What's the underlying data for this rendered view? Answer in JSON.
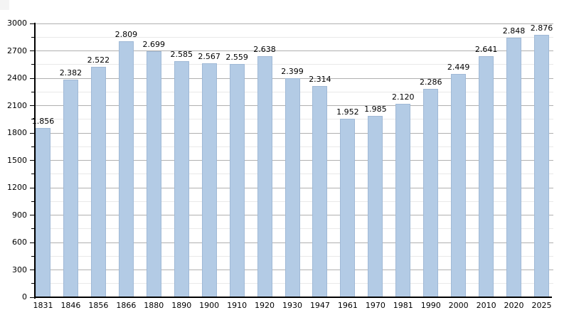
{
  "chart_data": {
    "type": "bar",
    "title": "",
    "xlabel": "",
    "ylabel": "",
    "categories": [
      "1831",
      "1846",
      "1856",
      "1866",
      "1880",
      "1890",
      "1900",
      "1910",
      "1920",
      "1930",
      "1947",
      "1961",
      "1970",
      "1981",
      "1990",
      "2000",
      "2010",
      "2020",
      "2025"
    ],
    "values": [
      1856,
      2382,
      2522,
      2809,
      2699,
      2585,
      2567,
      2559,
      2638,
      2399,
      2314,
      1952,
      1985,
      2120,
      2286,
      2449,
      2641,
      2848,
      2876
    ],
    "value_labels": [
      "1.856",
      "2.382",
      "2.522",
      "2.809",
      "2.699",
      "2.585",
      "2.567",
      "2.559",
      "2.638",
      "2.399",
      "2.314",
      "1.952",
      "1.985",
      "2.120",
      "2.286",
      "2.449",
      "2.641",
      "2.848",
      "2.876"
    ],
    "ylim": [
      0,
      3000
    ],
    "ytick_step": 300,
    "ytick_minor_step": 150,
    "ytick_labels": [
      "0",
      "300",
      "600",
      "900",
      "1200",
      "1500",
      "1800",
      "2100",
      "2400",
      "2700",
      "3000"
    ],
    "grid": true,
    "legend": "none",
    "colors": {
      "bar_fill": "#b3cbe5",
      "bar_border": "#a0b9d6",
      "grid_major": "#b0b0b0",
      "grid_minor": "#e9e9e9",
      "axis": "#000000",
      "text": "#000000",
      "background": "#ffffff",
      "corner_artifact": "#f4f4f4"
    }
  }
}
